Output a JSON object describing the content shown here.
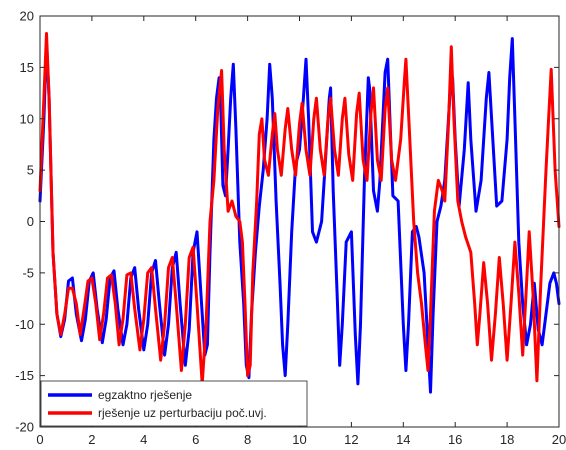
{
  "chart_data": {
    "type": "line",
    "title": "",
    "xlabel": "",
    "ylabel": "",
    "xlim": [
      0,
      20
    ],
    "ylim": [
      -20,
      20
    ],
    "xticks": [
      0,
      2,
      4,
      6,
      8,
      10,
      12,
      14,
      16,
      18,
      20
    ],
    "yticks": [
      -20,
      -15,
      -10,
      -5,
      0,
      5,
      10,
      15,
      20
    ],
    "grid": false,
    "legend_position": "bottom-left",
    "series": [
      {
        "name": "egzaktno rješenje",
        "color": "#0000ff",
        "points": [
          [
            0,
            2
          ],
          [
            0.15,
            10
          ],
          [
            0.25,
            17.5
          ],
          [
            0.35,
            12
          ],
          [
            0.5,
            -3
          ],
          [
            0.65,
            -9
          ],
          [
            0.8,
            -11.2
          ],
          [
            0.95,
            -9.5
          ],
          [
            1.1,
            -5.8
          ],
          [
            1.25,
            -5.5
          ],
          [
            1.4,
            -9
          ],
          [
            1.6,
            -11.6
          ],
          [
            1.75,
            -9.5
          ],
          [
            1.9,
            -5.8
          ],
          [
            2.05,
            -5
          ],
          [
            2.2,
            -8.5
          ],
          [
            2.4,
            -11.8
          ],
          [
            2.55,
            -9.5
          ],
          [
            2.7,
            -5.5
          ],
          [
            2.85,
            -4.8
          ],
          [
            3,
            -8.5
          ],
          [
            3.2,
            -12
          ],
          [
            3.35,
            -10
          ],
          [
            3.5,
            -5.5
          ],
          [
            3.65,
            -4.5
          ],
          [
            3.8,
            -8.5
          ],
          [
            4,
            -12.5
          ],
          [
            4.15,
            -10
          ],
          [
            4.3,
            -5
          ],
          [
            4.45,
            -3.8
          ],
          [
            4.6,
            -8
          ],
          [
            4.8,
            -13
          ],
          [
            4.95,
            -10
          ],
          [
            5.1,
            -4.5
          ],
          [
            5.25,
            -3
          ],
          [
            5.4,
            -8
          ],
          [
            5.6,
            -14
          ],
          [
            5.75,
            -10.5
          ],
          [
            5.9,
            -3
          ],
          [
            6.05,
            -1
          ],
          [
            6.2,
            -7
          ],
          [
            6.35,
            -13
          ],
          [
            6.45,
            -12
          ],
          [
            6.55,
            -3
          ],
          [
            6.7,
            8
          ],
          [
            6.8,
            12
          ],
          [
            6.9,
            14
          ],
          [
            6.95,
            12.5
          ],
          [
            7.05,
            3.5
          ],
          [
            7.15,
            2.5
          ],
          [
            7.25,
            7
          ],
          [
            7.35,
            12
          ],
          [
            7.45,
            15.3
          ],
          [
            7.55,
            9
          ],
          [
            7.7,
            -2
          ],
          [
            7.85,
            -8
          ],
          [
            7.95,
            -14
          ],
          [
            8.05,
            -15.2
          ],
          [
            8.15,
            -9
          ],
          [
            8.3,
            -3
          ],
          [
            8.45,
            1.5
          ],
          [
            8.6,
            5
          ],
          [
            8.75,
            10
          ],
          [
            8.85,
            15.3
          ],
          [
            8.95,
            12
          ],
          [
            9.1,
            2
          ],
          [
            9.25,
            -6
          ],
          [
            9.35,
            -12
          ],
          [
            9.45,
            -15
          ],
          [
            9.55,
            -10
          ],
          [
            9.7,
            -1
          ],
          [
            9.85,
            5.5
          ],
          [
            10,
            7
          ],
          [
            10.15,
            12
          ],
          [
            10.25,
            15.8
          ],
          [
            10.35,
            10
          ],
          [
            10.5,
            -1
          ],
          [
            10.65,
            -2
          ],
          [
            10.85,
            0
          ],
          [
            11,
            6
          ],
          [
            11.15,
            12
          ],
          [
            11.2,
            13
          ],
          [
            11.3,
            3
          ],
          [
            11.45,
            -7
          ],
          [
            11.55,
            -14
          ],
          [
            11.65,
            -10
          ],
          [
            11.8,
            -2
          ],
          [
            12,
            -1
          ],
          [
            12.15,
            -11
          ],
          [
            12.25,
            -15.8
          ],
          [
            12.35,
            -10
          ],
          [
            12.5,
            4
          ],
          [
            12.65,
            14
          ],
          [
            12.7,
            13
          ],
          [
            12.85,
            3
          ],
          [
            13,
            1
          ],
          [
            13.1,
            4
          ],
          [
            13.3,
            14.5
          ],
          [
            13.4,
            15.8
          ],
          [
            13.5,
            9
          ],
          [
            13.6,
            2.5
          ],
          [
            13.8,
            2
          ],
          [
            14,
            -10
          ],
          [
            14.1,
            -14.5
          ],
          [
            14.2,
            -10
          ],
          [
            14.35,
            -1
          ],
          [
            14.5,
            -0.5
          ],
          [
            14.6,
            -1.5
          ],
          [
            14.8,
            -5
          ],
          [
            14.95,
            -12
          ],
          [
            15.05,
            -16.6
          ],
          [
            15.15,
            -9
          ],
          [
            15.3,
            0
          ],
          [
            15.45,
            1.5
          ],
          [
            15.6,
            4
          ],
          [
            15.8,
            12.5
          ],
          [
            15.9,
            14
          ],
          [
            16,
            8
          ],
          [
            16.15,
            1.5
          ],
          [
            16.35,
            7
          ],
          [
            16.5,
            13.5
          ],
          [
            16.6,
            8
          ],
          [
            16.8,
            1
          ],
          [
            17,
            4
          ],
          [
            17.2,
            12
          ],
          [
            17.3,
            14.5
          ],
          [
            17.45,
            8
          ],
          [
            17.6,
            1.5
          ],
          [
            17.8,
            2
          ],
          [
            18,
            8
          ],
          [
            18.1,
            14
          ],
          [
            18.2,
            17.8
          ],
          [
            18.3,
            10
          ],
          [
            18.45,
            -2
          ],
          [
            18.6,
            -8
          ],
          [
            18.75,
            -12
          ],
          [
            18.9,
            -10
          ],
          [
            19.05,
            -6
          ],
          [
            19.2,
            -10.5
          ],
          [
            19.35,
            -12
          ],
          [
            19.5,
            -9
          ],
          [
            19.65,
            -6
          ],
          [
            19.8,
            -5
          ],
          [
            19.9,
            -6
          ],
          [
            20,
            -8
          ]
        ]
      },
      {
        "name": "rješenje uz perturbaciju poč.uvj.",
        "color": "#ff0000",
        "points": [
          [
            0,
            3
          ],
          [
            0.15,
            12
          ],
          [
            0.25,
            18.3
          ],
          [
            0.35,
            12
          ],
          [
            0.5,
            -3
          ],
          [
            0.65,
            -9
          ],
          [
            0.8,
            -11
          ],
          [
            0.95,
            -9
          ],
          [
            1.1,
            -6.5
          ],
          [
            1.25,
            -6.5
          ],
          [
            1.4,
            -8
          ],
          [
            1.55,
            -11
          ],
          [
            1.7,
            -8.5
          ],
          [
            1.85,
            -5.8
          ],
          [
            2,
            -5.5
          ],
          [
            2.15,
            -8
          ],
          [
            2.3,
            -11.5
          ],
          [
            2.45,
            -9
          ],
          [
            2.6,
            -5.5
          ],
          [
            2.75,
            -5.2
          ],
          [
            2.9,
            -8
          ],
          [
            3.05,
            -12
          ],
          [
            3.2,
            -9.5
          ],
          [
            3.35,
            -5.2
          ],
          [
            3.5,
            -5
          ],
          [
            3.65,
            -8.5
          ],
          [
            3.85,
            -12.5
          ],
          [
            4,
            -9.5
          ],
          [
            4.15,
            -5
          ],
          [
            4.3,
            -4.5
          ],
          [
            4.45,
            -8.5
          ],
          [
            4.65,
            -13.5
          ],
          [
            4.8,
            -10
          ],
          [
            4.95,
            -4.5
          ],
          [
            5.1,
            -3.5
          ],
          [
            5.25,
            -8
          ],
          [
            5.45,
            -14.5
          ],
          [
            5.6,
            -10
          ],
          [
            5.75,
            -3.5
          ],
          [
            5.9,
            -2.5
          ],
          [
            6.05,
            -8
          ],
          [
            6.25,
            -15.8
          ],
          [
            6.4,
            -10
          ],
          [
            6.55,
            0
          ],
          [
            6.7,
            4
          ],
          [
            6.85,
            11
          ],
          [
            7,
            14.7
          ],
          [
            7.1,
            7
          ],
          [
            7.25,
            1
          ],
          [
            7.4,
            2
          ],
          [
            7.55,
            0.5
          ],
          [
            7.7,
            0
          ],
          [
            7.8,
            -2
          ],
          [
            7.9,
            -8
          ],
          [
            8,
            -15
          ],
          [
            8.1,
            -14
          ],
          [
            8.2,
            -5
          ],
          [
            8.35,
            2
          ],
          [
            8.45,
            8.5
          ],
          [
            8.55,
            10
          ],
          [
            8.65,
            6
          ],
          [
            8.8,
            4.5
          ],
          [
            8.95,
            8.5
          ],
          [
            9.05,
            10.5
          ],
          [
            9.15,
            7
          ],
          [
            9.3,
            4.5
          ],
          [
            9.45,
            9
          ],
          [
            9.55,
            11
          ],
          [
            9.7,
            7
          ],
          [
            9.85,
            4.5
          ],
          [
            10,
            9.5
          ],
          [
            10.1,
            11.5
          ],
          [
            10.25,
            7
          ],
          [
            10.4,
            4.5
          ],
          [
            10.55,
            10
          ],
          [
            10.65,
            12
          ],
          [
            10.8,
            7
          ],
          [
            10.95,
            4.5
          ],
          [
            11.1,
            10
          ],
          [
            11.2,
            12
          ],
          [
            11.35,
            7
          ],
          [
            11.5,
            4.5
          ],
          [
            11.65,
            10
          ],
          [
            11.75,
            12
          ],
          [
            11.9,
            6.5
          ],
          [
            12.05,
            4
          ],
          [
            12.2,
            10.5
          ],
          [
            12.3,
            12.5
          ],
          [
            12.45,
            6
          ],
          [
            12.6,
            4
          ],
          [
            12.75,
            10.5
          ],
          [
            12.85,
            13
          ],
          [
            13,
            6
          ],
          [
            13.15,
            4
          ],
          [
            13.3,
            11
          ],
          [
            13.4,
            13
          ],
          [
            13.55,
            6
          ],
          [
            13.7,
            4
          ],
          [
            13.9,
            8
          ],
          [
            14.05,
            14
          ],
          [
            14.1,
            15.8
          ],
          [
            14.25,
            8
          ],
          [
            14.4,
            0
          ],
          [
            14.55,
            -5
          ],
          [
            14.7,
            -8
          ],
          [
            14.85,
            -12
          ],
          [
            14.95,
            -14.5
          ],
          [
            15.05,
            -9
          ],
          [
            15.2,
            1
          ],
          [
            15.35,
            4
          ],
          [
            15.5,
            3
          ],
          [
            15.6,
            2
          ],
          [
            15.75,
            10
          ],
          [
            15.85,
            17
          ],
          [
            15.95,
            10
          ],
          [
            16.1,
            2
          ],
          [
            16.25,
            0
          ],
          [
            16.4,
            -1.5
          ],
          [
            16.6,
            -3
          ],
          [
            16.75,
            -8
          ],
          [
            16.85,
            -12
          ],
          [
            16.95,
            -9
          ],
          [
            17.1,
            -4
          ],
          [
            17.25,
            -8
          ],
          [
            17.4,
            -13.5
          ],
          [
            17.55,
            -9
          ],
          [
            17.7,
            -3.5
          ],
          [
            17.85,
            -8
          ],
          [
            18,
            -13.5
          ],
          [
            18.15,
            -8
          ],
          [
            18.3,
            -2
          ],
          [
            18.45,
            -7
          ],
          [
            18.6,
            -13
          ],
          [
            18.75,
            -6
          ],
          [
            18.85,
            -1
          ],
          [
            19,
            -7
          ],
          [
            19.15,
            -15.5
          ],
          [
            19.3,
            -6
          ],
          [
            19.5,
            5
          ],
          [
            19.6,
            10
          ],
          [
            19.7,
            14.8
          ],
          [
            19.85,
            5
          ],
          [
            20,
            -0.5
          ]
        ]
      }
    ]
  }
}
